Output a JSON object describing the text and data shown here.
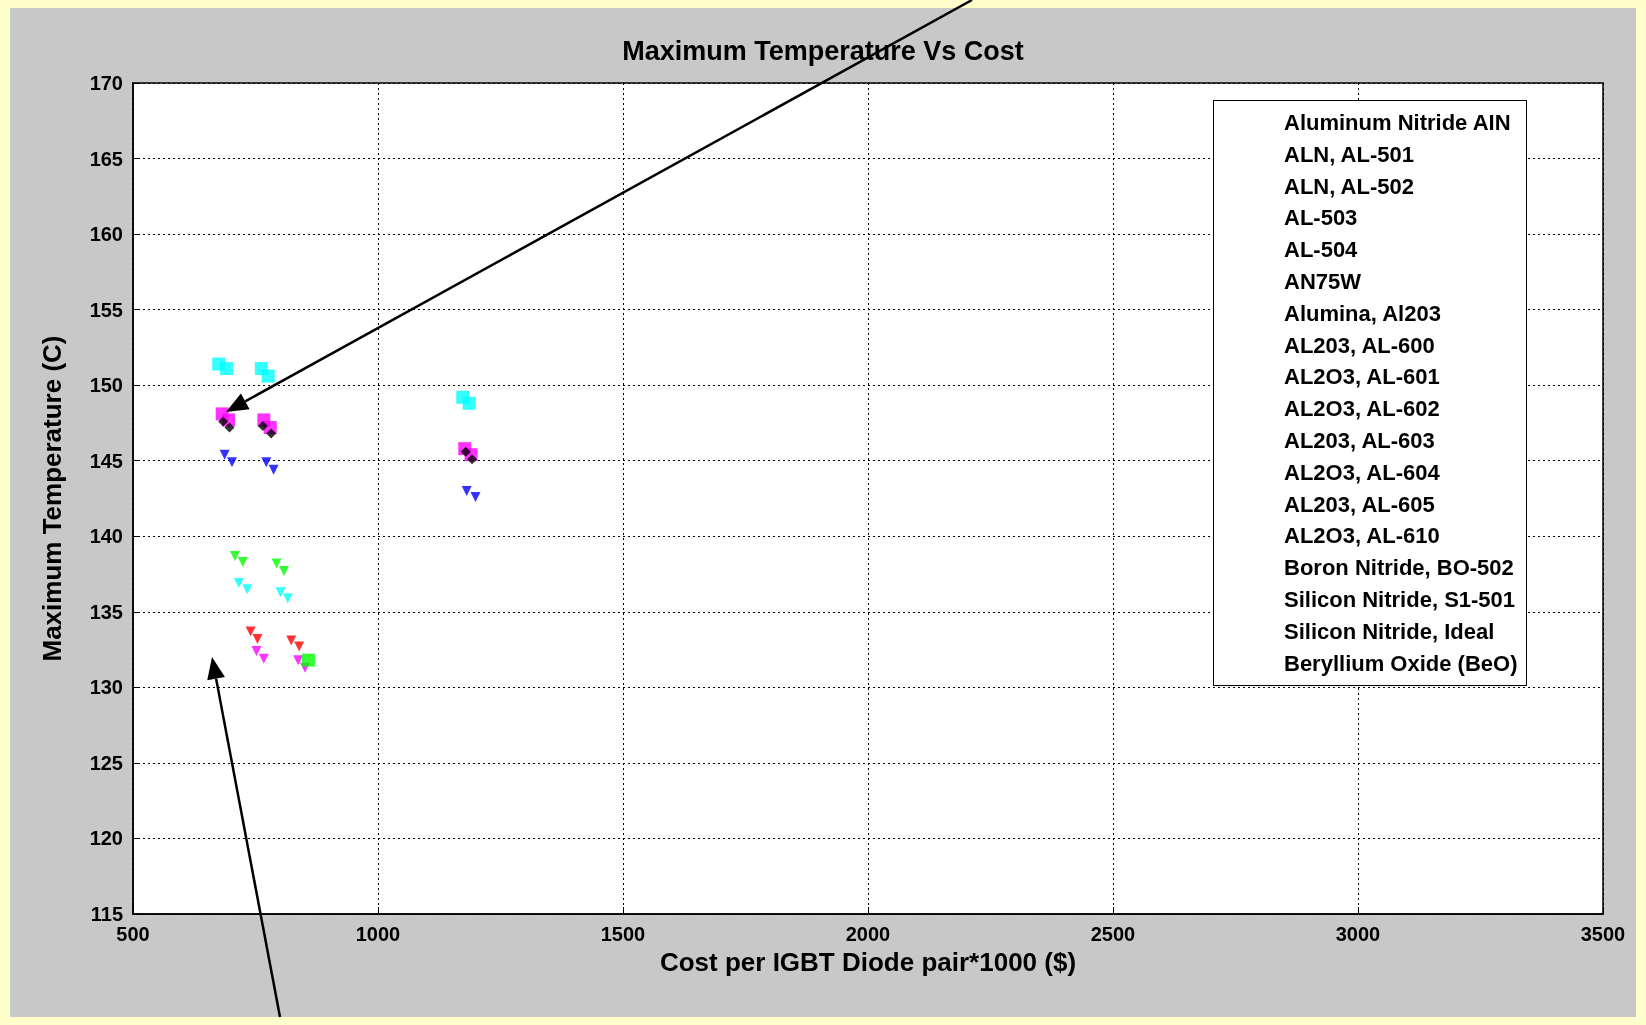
{
  "chart_data": {
    "type": "scatter",
    "title": "Maximum Temperature Vs Cost",
    "xlabel": "Cost per IGBT Diode pair*1000 ($)",
    "ylabel": "Maximum Temperature (C)",
    "xlim": [
      500,
      3500
    ],
    "xticks": [
      500,
      1000,
      1500,
      2000,
      2500,
      3000,
      3500
    ],
    "ylim": [
      115,
      170
    ],
    "yticks": [
      115,
      120,
      125,
      130,
      135,
      140,
      145,
      150,
      155,
      160,
      165,
      170
    ],
    "grid": true,
    "annotations": [
      "Aluminum Nitride AIN",
      "ALN, AL-501",
      "ALN, AL-502",
      "AL-503",
      "AL-504",
      "AN75W",
      "Alumina, Al203",
      "AL203, AL-600",
      "AL2O3, AL-601",
      "AL2O3, AL-602",
      "AL203, AL-603",
      "AL2O3, AL-604",
      "AL203, AL-605",
      "AL2O3, AL-610",
      "Boron Nitride, BO-502",
      "Silicon Nitride, S1-501",
      "Silicon Nitride, Ideal",
      "Beryllium Oxide (BeO)"
    ],
    "series": [
      {
        "color": "#00ffff",
        "marker": "square",
        "x": [
          675,
          691,
          762,
          776,
          1173,
          1186
        ],
        "values": [
          151.4,
          151.1,
          151.1,
          150.6,
          149.2,
          148.8
        ]
      },
      {
        "color": "#ff00ff",
        "marker": "square",
        "x": [
          682,
          695,
          767,
          780,
          1177,
          1190
        ],
        "values": [
          148.1,
          147.7,
          147.7,
          147.2,
          145.8,
          145.4
        ]
      },
      {
        "color": "#000000",
        "marker": "diamond",
        "x": [
          684,
          697,
          765,
          782,
          1179,
          1192
        ],
        "values": [
          147.6,
          147.2,
          147.3,
          146.8,
          145.6,
          145.1
        ]
      },
      {
        "color": "#0000ff",
        "marker": "triangle",
        "x": [
          687,
          702,
          772,
          787,
          1181,
          1199
        ],
        "values": [
          145.4,
          144.9,
          144.9,
          144.4,
          143.0,
          142.6
        ]
      },
      {
        "color": "#00ff00",
        "marker": "triangle",
        "x": [
          708,
          724,
          793,
          808
        ],
        "values": [
          138.7,
          138.3,
          138.2,
          137.7
        ]
      },
      {
        "color": "#00ffff",
        "marker": "triangle",
        "x": [
          716,
          733,
          801,
          816
        ],
        "values": [
          136.9,
          136.5,
          136.3,
          135.9
        ]
      },
      {
        "color": "#ff0000",
        "marker": "triangle",
        "x": [
          740,
          754,
          823,
          839
        ],
        "values": [
          133.7,
          133.2,
          133.1,
          132.7
        ]
      },
      {
        "color": "#ff00ff",
        "marker": "triangle",
        "x": [
          752,
          767,
          837,
          851
        ],
        "values": [
          132.4,
          131.9,
          131.8,
          131.3
        ]
      },
      {
        "color": "#00ff00",
        "marker": "square",
        "x": [
          858
        ],
        "values": [
          131.8
        ]
      }
    ]
  }
}
